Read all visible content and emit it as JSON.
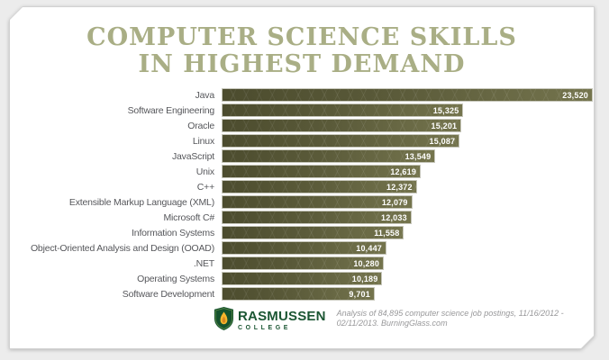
{
  "page": {
    "background_color": "#ececec",
    "card_color": "#ffffff"
  },
  "title": {
    "line1": "COMPUTER SCIENCE SKILLS",
    "line2": "IN HIGHEST DEMAND",
    "color": "#a9ae85"
  },
  "chart_data": {
    "type": "bar",
    "orientation": "horizontal",
    "title": "Computer Science Skills in Highest Demand",
    "categories": [
      "Java",
      "Software Engineering",
      "Oracle",
      "Linux",
      "JavaScript",
      "Unix",
      "C++",
      "Extensible Markup Language (XML)",
      "Microsoft C#",
      "Information Systems",
      "Object-Oriented Analysis and Design (OOAD)",
      ".NET",
      "Operating Systems",
      "Software Development"
    ],
    "values": [
      23520,
      15325,
      15201,
      15087,
      13549,
      12619,
      12372,
      12079,
      12033,
      11558,
      10447,
      10280,
      10189,
      9701
    ],
    "value_labels": [
      "23,520",
      "15,325",
      "15,201",
      "15,087",
      "13,549",
      "12,619",
      "12,372",
      "12,079",
      "12,033",
      "11,558",
      "10,447",
      "10,280",
      "10,189",
      "9,701"
    ],
    "xlim": [
      0,
      23520
    ],
    "grid": false,
    "legend": false,
    "bar_gradient": [
      "#4c4c2e",
      "#74744d"
    ],
    "bar_value_color": "#ffffff",
    "label_color": "#56575b"
  },
  "footer": {
    "logo_name": "RASMUSSEN",
    "logo_sub": "COLLEGE",
    "logo_shield_color": "#15522e",
    "logo_flame_color": "#f6b52c",
    "source_line1": "Analysis of 84,895 computer science job postings, 11/16/2012 -",
    "source_line2": "02/11/2013. BurningGlass.com"
  }
}
